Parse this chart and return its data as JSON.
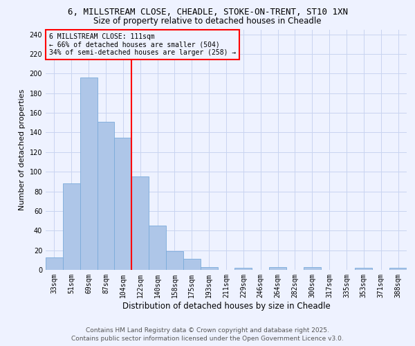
{
  "title": "6, MILLSTREAM CLOSE, CHEADLE, STOKE-ON-TRENT, ST10 1XN",
  "subtitle": "Size of property relative to detached houses in Cheadle",
  "xlabel": "Distribution of detached houses by size in Cheadle",
  "ylabel": "Number of detached properties",
  "categories": [
    "33sqm",
    "51sqm",
    "69sqm",
    "87sqm",
    "104sqm",
    "122sqm",
    "140sqm",
    "158sqm",
    "175sqm",
    "193sqm",
    "211sqm",
    "229sqm",
    "246sqm",
    "264sqm",
    "282sqm",
    "300sqm",
    "317sqm",
    "335sqm",
    "353sqm",
    "371sqm",
    "388sqm"
  ],
  "values": [
    13,
    88,
    196,
    151,
    135,
    95,
    45,
    19,
    11,
    3,
    0,
    2,
    0,
    3,
    0,
    3,
    0,
    0,
    2,
    0,
    2
  ],
  "bar_color": "#aec6e8",
  "bar_edge_color": "#7aabda",
  "vline_x": 4.5,
  "vline_color": "red",
  "annotation_title": "6 MILLSTREAM CLOSE: 111sqm",
  "annotation_line1": "← 66% of detached houses are smaller (504)",
  "annotation_line2": "34% of semi-detached houses are larger (258) →",
  "annotation_box_color": "red",
  "ylim": [
    0,
    245
  ],
  "yticks": [
    0,
    20,
    40,
    60,
    80,
    100,
    120,
    140,
    160,
    180,
    200,
    220,
    240
  ],
  "footer1": "Contains HM Land Registry data © Crown copyright and database right 2025.",
  "footer2": "Contains public sector information licensed under the Open Government Licence v3.0.",
  "bg_color": "#eef2ff",
  "grid_color": "#c8d4f0",
  "title_fontsize": 9,
  "subtitle_fontsize": 8.5,
  "xlabel_fontsize": 8.5,
  "ylabel_fontsize": 8,
  "tick_fontsize": 7,
  "annotation_fontsize": 7,
  "footer_fontsize": 6.5
}
